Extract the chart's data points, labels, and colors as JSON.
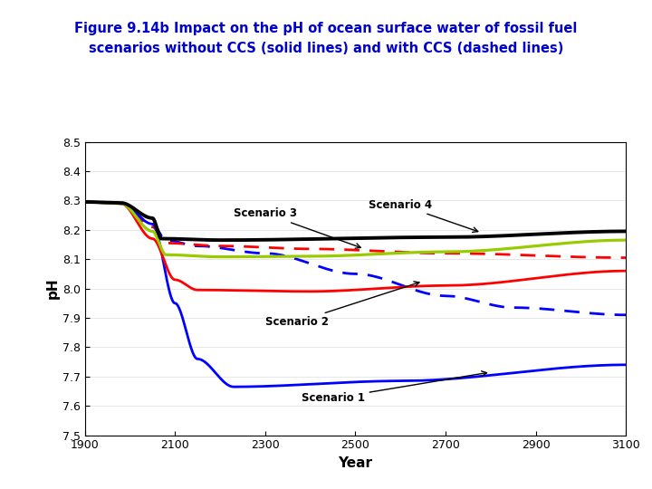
{
  "title_line1": "Figure 9.14b Impact on the pH of ocean surface water of fossil fuel",
  "title_line2": "scenarios without CCS (solid lines) and with CCS (dashed lines)",
  "title_color": "#0000CC",
  "xlabel": "Year",
  "ylabel": "pH",
  "xlim": [
    1900,
    3100
  ],
  "ylim": [
    7.5,
    8.5
  ],
  "xticks": [
    1900,
    2100,
    2300,
    2500,
    2700,
    2900,
    3100
  ],
  "yticks": [
    7.5,
    7.6,
    7.7,
    7.8,
    7.9,
    8.0,
    8.1,
    8.2,
    8.3,
    8.4,
    8.5
  ],
  "background_color": "#ffffff",
  "figsize": [
    7.2,
    5.4
  ],
  "dpi": 100
}
